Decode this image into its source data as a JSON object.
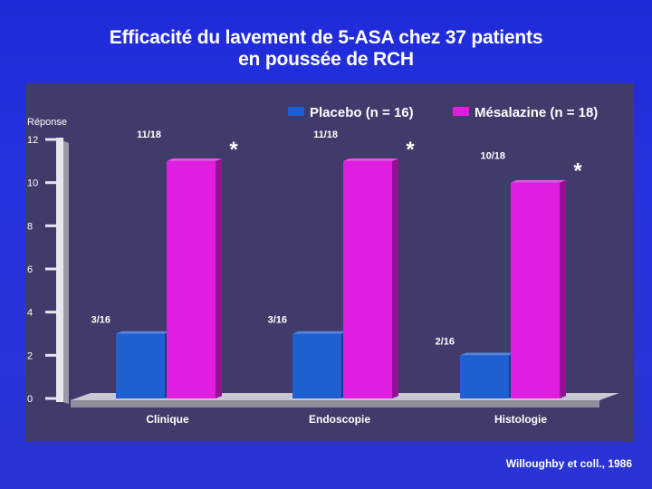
{
  "slide": {
    "title_line1": "Efficacité du lavement de 5-ASA chez 37 patients",
    "title_line2": "en poussée de RCH",
    "credit": "Willoughby et coll., 1986"
  },
  "colors": {
    "background": "#2430dc",
    "panel": "#3f3b6a",
    "placebo": "#1e5fd2",
    "mesalazine": "#e01ee0",
    "text": "#ffffff"
  },
  "chart_data": {
    "type": "bar",
    "title": "",
    "ylabel": "Réponse",
    "xlabel": "",
    "ylim": [
      0,
      12
    ],
    "yticks": [
      0,
      2,
      4,
      6,
      8,
      10,
      12
    ],
    "categories": [
      "Clinique",
      "Endoscopie",
      "Histologie"
    ],
    "series": [
      {
        "name": "Placebo (n = 16)",
        "color": "#1e5fd2",
        "values": [
          3,
          3,
          2
        ],
        "labels": [
          "3/16",
          "3/16",
          "2/16"
        ]
      },
      {
        "name": "Mésalazine (n = 18)",
        "color": "#e01ee0",
        "values": [
          11,
          11,
          10
        ],
        "labels": [
          "11/18",
          "11/18",
          "10/18"
        ]
      }
    ],
    "annotations": [
      "*",
      "*",
      "*"
    ],
    "legend_position": "top-right",
    "grid": false
  }
}
